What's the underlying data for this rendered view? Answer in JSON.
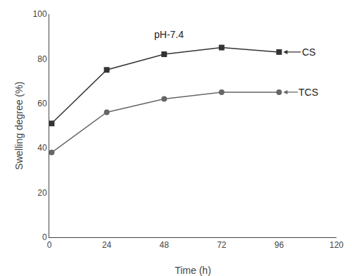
{
  "chart_data": {
    "type": "line",
    "x_label": "Time (h)",
    "y_label": "Swelling degree (%)",
    "x": [
      1,
      24,
      48,
      72,
      96
    ],
    "series": [
      {
        "name": "CS",
        "color": "#333333",
        "marker": "square",
        "values": [
          51,
          75,
          82,
          85,
          83
        ]
      },
      {
        "name": "TCS",
        "color": "#666666",
        "marker": "circle",
        "values": [
          38,
          56,
          62,
          65,
          65
        ]
      }
    ],
    "annotations": [
      {
        "text": "pH-7.4",
        "x": 50,
        "y": 94
      }
    ],
    "xlim": [
      0,
      120
    ],
    "xticks": [
      0,
      24,
      48,
      72,
      96,
      120
    ],
    "ylim": [
      0,
      100
    ],
    "yticks": [
      0,
      20,
      40,
      60,
      80,
      100
    ],
    "grid": false
  }
}
